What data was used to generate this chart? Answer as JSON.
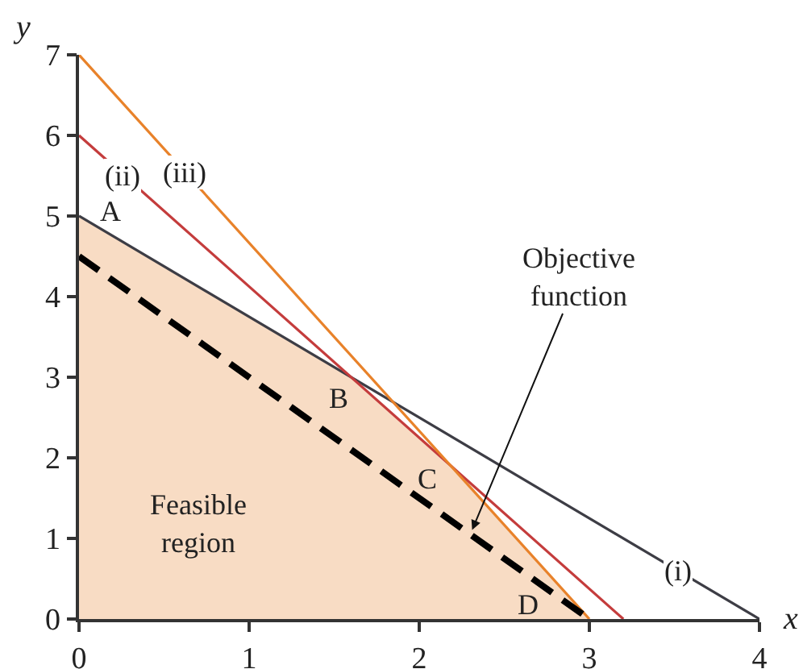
{
  "chart_data": {
    "type": "line",
    "xlabel": "x",
    "ylabel": "y",
    "xlim": [
      0,
      4
    ],
    "ylim": [
      0,
      7
    ],
    "xticks": [
      0,
      1,
      2,
      3,
      4
    ],
    "yticks": [
      0,
      1,
      2,
      3,
      4,
      5,
      6,
      7
    ],
    "grid": false,
    "marker": "none",
    "series": [
      {
        "type": "area",
        "color": "#f8dcc4",
        "x": [
          0,
          1.6,
          2.2,
          3
        ],
        "values": [
          5,
          3,
          1.9,
          0
        ]
      },
      {
        "color": "#3d3d45",
        "x": [
          0,
          4
        ],
        "values": [
          5,
          0
        ]
      },
      {
        "color": "#c43c3c",
        "x": [
          0,
          3.2
        ],
        "values": [
          6,
          0
        ]
      },
      {
        "color": "#e8822a",
        "x": [
          0,
          3
        ],
        "values": [
          7,
          0
        ]
      },
      {
        "color": "#000000",
        "x": [
          0,
          3
        ],
        "values": [
          4.5,
          0
        ],
        "line_style": "dashed"
      }
    ],
    "annotations": [
      {
        "text": "A",
        "x": 0,
        "y": 5
      },
      {
        "text": "B",
        "x": 1.6,
        "y": 3
      },
      {
        "text": "C",
        "x": 2.2,
        "y": 1.9
      },
      {
        "text": "D",
        "x": 3,
        "y": 0
      },
      {
        "text": "(i)",
        "x": 3.52,
        "y": 0.6
      },
      {
        "text": "(ii)",
        "x": 0.26,
        "y": 5.51
      },
      {
        "text": "(iii)",
        "x": 0.62,
        "y": 5.55
      },
      "Feasible\nregion",
      {
        "text": "Objective\nfunction",
        "x": 2.3,
        "y": 1.05
      }
    ]
  }
}
